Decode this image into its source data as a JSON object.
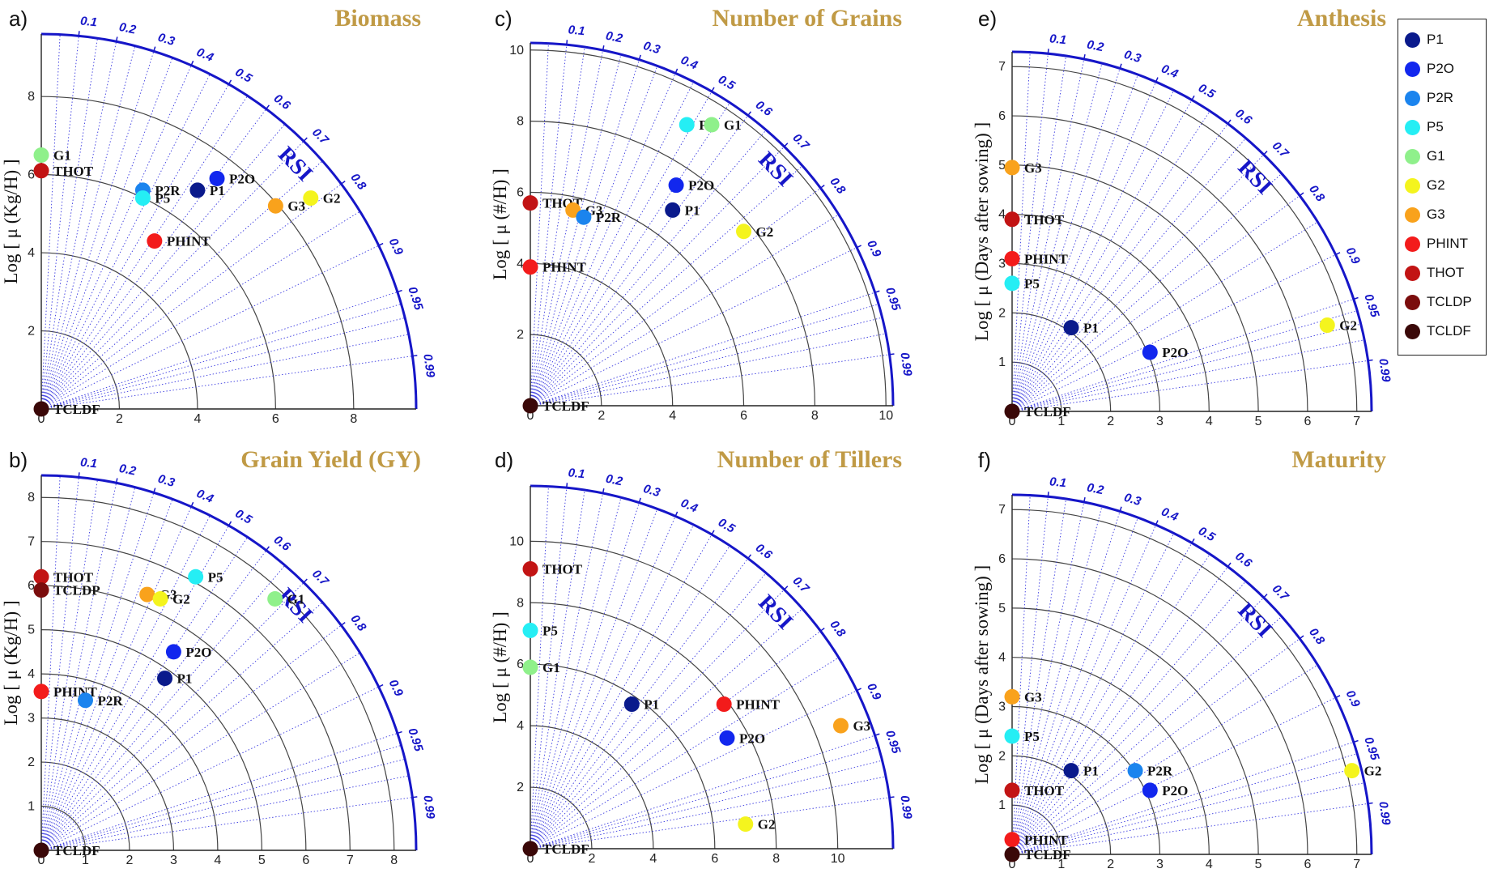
{
  "legend": [
    {
      "name": "P1",
      "color": "#0a1a8c"
    },
    {
      "name": "P2O",
      "color": "#1227ee"
    },
    {
      "name": "P2R",
      "color": "#1b84ee"
    },
    {
      "name": "P5",
      "color": "#25eef4"
    },
    {
      "name": "G1",
      "color": "#8ff08b"
    },
    {
      "name": "G2",
      "color": "#f4f41e"
    },
    {
      "name": "G3",
      "color": "#f9a21c"
    },
    {
      "name": "PHINT",
      "color": "#f31b1b"
    },
    {
      "name": "THOT",
      "color": "#c21414"
    },
    {
      "name": "TCLDP",
      "color": "#7b0d0d"
    },
    {
      "name": "TCLDF",
      "color": "#3a0808"
    }
  ],
  "chart_data": [
    {
      "panel": "a)",
      "title": "Biomass",
      "type": "scatter",
      "ylabel": "Log [ μ (Kg/H) ]",
      "arc_label": "RSI",
      "rmax": 9.6,
      "ticks": [
        0,
        2,
        4,
        6,
        8
      ],
      "rsi_ticks": [
        "0.1",
        "0.2",
        "0.3",
        "0.4",
        "0.5",
        "0.6",
        "0.7",
        "0.8",
        "0.9",
        "0.95",
        "0.99"
      ],
      "points": [
        {
          "label": "G1",
          "x": 0,
          "y": 6.5
        },
        {
          "label": "THOT",
          "x": 0,
          "y": 6.1
        },
        {
          "label": "P2R",
          "x": 2.6,
          "y": 5.6
        },
        {
          "label": "P5",
          "x": 2.6,
          "y": 5.4
        },
        {
          "label": "P1",
          "x": 4.0,
          "y": 5.6
        },
        {
          "label": "P2O",
          "x": 4.5,
          "y": 5.9
        },
        {
          "label": "G3",
          "x": 6.0,
          "y": 5.2
        },
        {
          "label": "G2",
          "x": 6.9,
          "y": 5.4
        },
        {
          "label": "PHINT",
          "x": 2.9,
          "y": 4.3
        },
        {
          "label": "TCLDF",
          "x": 0,
          "y": 0
        }
      ]
    },
    {
      "panel": "b)",
      "title": "Grain Yield (GY)",
      "type": "scatter",
      "ylabel": "Log [ μ (Kg/H) ]",
      "arc_label": "RSI",
      "rmax": 8.5,
      "ticks": [
        0,
        1,
        2,
        3,
        4,
        5,
        6,
        7,
        8
      ],
      "rsi_ticks": [
        "0.1",
        "0.2",
        "0.3",
        "0.4",
        "0.5",
        "0.6",
        "0.7",
        "0.8",
        "0.9",
        "0.95",
        "0.99"
      ],
      "points": [
        {
          "label": "THOT",
          "x": 0,
          "y": 6.2
        },
        {
          "label": "TCLDP",
          "x": 0,
          "y": 5.9
        },
        {
          "label": "G3",
          "x": 2.4,
          "y": 5.8
        },
        {
          "label": "G2",
          "x": 2.7,
          "y": 5.7
        },
        {
          "label": "P5",
          "x": 3.5,
          "y": 6.2
        },
        {
          "label": "G1",
          "x": 5.3,
          "y": 5.7
        },
        {
          "label": "P2O",
          "x": 3.0,
          "y": 4.5
        },
        {
          "label": "P1",
          "x": 2.8,
          "y": 3.9
        },
        {
          "label": "PHINT",
          "x": 0,
          "y": 3.6
        },
        {
          "label": "P2R",
          "x": 1.0,
          "y": 3.4
        },
        {
          "label": "TCLDF",
          "x": 0,
          "y": 0
        }
      ]
    },
    {
      "panel": "c)",
      "title": "Number of Grains",
      "type": "scatter",
      "ylabel": "Log [ μ (#/H) ]",
      "arc_label": "RSI",
      "rmax": 10.2,
      "ticks": [
        0,
        2,
        4,
        6,
        8,
        10
      ],
      "rsi_ticks": [
        "0.1",
        "0.2",
        "0.3",
        "0.4",
        "0.5",
        "0.6",
        "0.7",
        "0.8",
        "0.9",
        "0.95",
        "0.99"
      ],
      "points": [
        {
          "label": "P5",
          "x": 4.4,
          "y": 7.9
        },
        {
          "label": "G1",
          "x": 5.1,
          "y": 7.9
        },
        {
          "label": "P2O",
          "x": 4.1,
          "y": 6.2
        },
        {
          "label": "P1",
          "x": 4.0,
          "y": 5.5
        },
        {
          "label": "G2",
          "x": 6.0,
          "y": 4.9
        },
        {
          "label": "THOT",
          "x": 0,
          "y": 5.7
        },
        {
          "label": "G3",
          "x": 1.2,
          "y": 5.5
        },
        {
          "label": "P2R",
          "x": 1.5,
          "y": 5.3
        },
        {
          "label": "PHINT",
          "x": 0,
          "y": 3.9
        },
        {
          "label": "TCLDF",
          "x": 0,
          "y": 0
        }
      ]
    },
    {
      "panel": "d)",
      "title": "Number of Tillers",
      "type": "scatter",
      "ylabel": "Log [ μ (#/H) ]",
      "arc_label": "RSI",
      "rmax": 11.8,
      "ticks": [
        0,
        2,
        4,
        6,
        8,
        10
      ],
      "rsi_ticks": [
        "0.1",
        "0.2",
        "0.3",
        "0.4",
        "0.5",
        "0.6",
        "0.7",
        "0.8",
        "0.9",
        "0.95",
        "0.99"
      ],
      "points": [
        {
          "label": "THOT",
          "x": 0,
          "y": 9.1
        },
        {
          "label": "P5",
          "x": 0,
          "y": 7.1
        },
        {
          "label": "G1",
          "x": 0,
          "y": 5.9
        },
        {
          "label": "P1",
          "x": 3.3,
          "y": 4.7
        },
        {
          "label": "PHINT",
          "x": 6.3,
          "y": 4.7
        },
        {
          "label": "P2O",
          "x": 6.4,
          "y": 3.6
        },
        {
          "label": "G3",
          "x": 10.1,
          "y": 4.0
        },
        {
          "label": "G2",
          "x": 7.0,
          "y": 0.8
        },
        {
          "label": "TCLDF",
          "x": 0,
          "y": 0
        }
      ]
    },
    {
      "panel": "e)",
      "title": "Anthesis",
      "type": "scatter",
      "ylabel": "Log [ μ (Days after sowing) ]",
      "arc_label": "RSI",
      "rmax": 7.3,
      "ticks": [
        0,
        1,
        2,
        3,
        4,
        5,
        6,
        7
      ],
      "rsi_ticks": [
        "0.1",
        "0.2",
        "0.3",
        "0.4",
        "0.5",
        "0.6",
        "0.7",
        "0.8",
        "0.9",
        "0.95",
        "0.99"
      ],
      "points": [
        {
          "label": "G3",
          "x": 0,
          "y": 4.95
        },
        {
          "label": "THOT",
          "x": 0,
          "y": 3.9
        },
        {
          "label": "PHINT",
          "x": 0,
          "y": 3.1
        },
        {
          "label": "P5",
          "x": 0,
          "y": 2.6
        },
        {
          "label": "P1",
          "x": 1.2,
          "y": 1.7
        },
        {
          "label": "P2O",
          "x": 2.8,
          "y": 1.2
        },
        {
          "label": "G2",
          "x": 6.4,
          "y": 1.75
        },
        {
          "label": "TCLDF",
          "x": 0,
          "y": 0
        }
      ]
    },
    {
      "panel": "f)",
      "title": "Maturity",
      "type": "scatter",
      "ylabel": "Log [ μ (Days after sowing) ]",
      "arc_label": "RSI",
      "rmax": 7.3,
      "ticks": [
        0,
        1,
        2,
        3,
        4,
        5,
        6,
        7
      ],
      "rsi_ticks": [
        "0.1",
        "0.2",
        "0.3",
        "0.4",
        "0.5",
        "0.6",
        "0.7",
        "0.8",
        "0.9",
        "0.95",
        "0.99"
      ],
      "points": [
        {
          "label": "G3",
          "x": 0,
          "y": 3.2
        },
        {
          "label": "P5",
          "x": 0,
          "y": 2.4
        },
        {
          "label": "THOT",
          "x": 0,
          "y": 1.3
        },
        {
          "label": "P1",
          "x": 1.2,
          "y": 1.7
        },
        {
          "label": "P2R",
          "x": 2.5,
          "y": 1.7
        },
        {
          "label": "P2O",
          "x": 2.8,
          "y": 1.3
        },
        {
          "label": "G2",
          "x": 6.9,
          "y": 1.7
        },
        {
          "label": "PHINT",
          "x": 0,
          "y": 0.3
        },
        {
          "label": "TCLDF",
          "x": 0,
          "y": 0
        }
      ]
    }
  ]
}
